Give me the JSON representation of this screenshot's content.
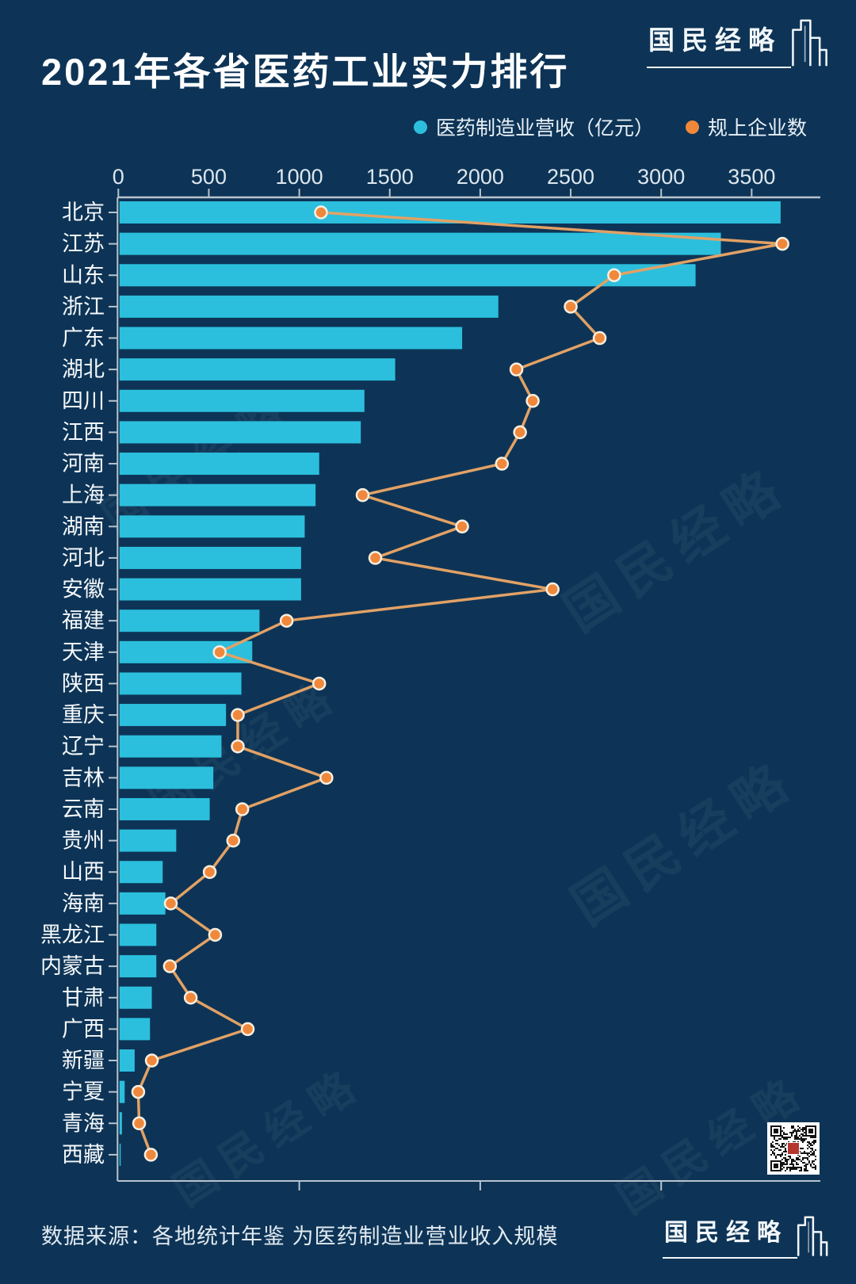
{
  "title": "2021年各省医药工业实力排行",
  "brand": {
    "name": "国民经略"
  },
  "watermark": "国民经略",
  "legend": [
    {
      "label": "医药制造业营收（亿元）",
      "color": "#2bbfdd"
    },
    {
      "label": "规上企业数",
      "color": "#f0883c"
    }
  ],
  "footer": {
    "source": "数据来源：各地统计年鉴 为医药制造业营业收入规模"
  },
  "colors": {
    "background": "#0d3456",
    "bar": "#2bbfdd",
    "line": "#e2a165",
    "dot_fill": "#f0883c",
    "dot_stroke": "#f6efe2",
    "axis": "#b9c3cd",
    "tick_text": "#dde7ef",
    "category_text": "#f6f9fc"
  },
  "chart_data": {
    "type": "bar",
    "orientation": "horizontal",
    "title": "2021年各省医药工业实力排行",
    "legend_position": "top-right",
    "categories": [
      "北京",
      "江苏",
      "山东",
      "浙江",
      "广东",
      "湖北",
      "四川",
      "江西",
      "河南",
      "上海",
      "湖南",
      "河北",
      "安徽",
      "福建",
      "天津",
      "陕西",
      "重庆",
      "辽宁",
      "吉林",
      "云南",
      "贵州",
      "山西",
      "海南",
      "黑龙江",
      "内蒙古",
      "甘肃",
      "广西",
      "新疆",
      "宁夏",
      "青海",
      "西藏"
    ],
    "series": [
      {
        "name": "医药制造业营收（亿元）",
        "type": "bar",
        "values": [
          3660,
          3330,
          3190,
          2100,
          1900,
          1530,
          1360,
          1340,
          1110,
          1090,
          1030,
          1010,
          1010,
          780,
          740,
          680,
          595,
          570,
          525,
          505,
          320,
          245,
          260,
          210,
          210,
          185,
          175,
          90,
          35,
          20,
          10
        ]
      },
      {
        "name": "规上企业数",
        "type": "line",
        "values": [
          1120,
          3670,
          2740,
          2500,
          2660,
          2200,
          2290,
          2220,
          2120,
          1350,
          1900,
          1420,
          2400,
          930,
          560,
          1110,
          660,
          660,
          1150,
          685,
          635,
          505,
          290,
          535,
          285,
          400,
          715,
          185,
          110,
          115,
          180
        ]
      }
    ],
    "x_axis": {
      "position": "top",
      "ticks": [
        0,
        500,
        1000,
        1500,
        2000,
        2500,
        3000,
        3500
      ],
      "minor_bottom_ticks": [
        1000,
        2000,
        3000
      ],
      "max": 3880
    }
  }
}
